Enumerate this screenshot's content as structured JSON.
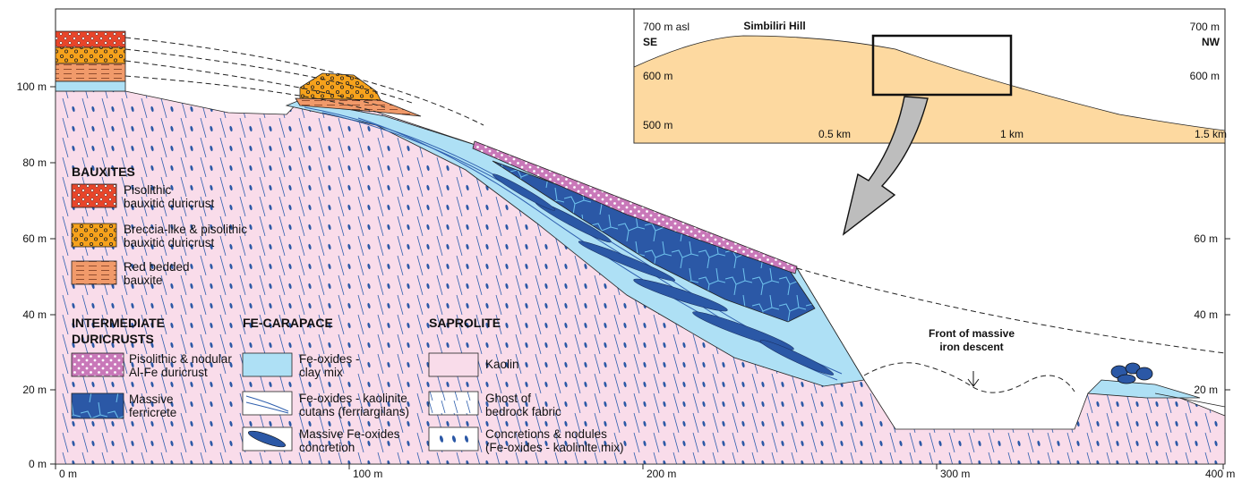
{
  "figure": {
    "y_ticks": [
      "0 m",
      "20 m",
      "40 m",
      "60 m",
      "80 m",
      "100 m"
    ],
    "y_ticks_right": [
      "20 m",
      "40 m",
      "60 m"
    ],
    "x_ticks": [
      "0 m",
      "100 m",
      "200 m",
      "300 m",
      "400 m"
    ],
    "annotation_line1": "Front of massive",
    "annotation_line2": "iron descent"
  },
  "inset": {
    "title": "Simbiliri Hill",
    "left_top": "700 m asl",
    "left_dir": "SE",
    "left_600": "600 m",
    "left_500": "500 m",
    "right_top": "700 m",
    "right_dir": "NW",
    "right_600": "600 m",
    "x_05": "0.5 km",
    "x_1": "1 km",
    "x_15": "1.5 km"
  },
  "legend": {
    "bauxites": {
      "header": "BAUXITES",
      "pisolithic": [
        "Pisolithic",
        "bauxitic duricrust"
      ],
      "breccia": [
        "Breccia-like & pisolithic",
        "bauxitic duricrust"
      ],
      "red_bedded": [
        "Red bedded",
        "bauxite"
      ]
    },
    "intermediate": {
      "header": [
        "INTERMEDIATE",
        "DURICRUSTS"
      ],
      "pisolithic_nodular": [
        "Pisolithic & nodular",
        "Al-Fe duricrust"
      ],
      "massive_ferricrete": [
        "Massive",
        "ferricrete"
      ]
    },
    "carapace": {
      "header": "FE-CARAPACE",
      "clay_mix": [
        "Fe-oxides -",
        "clay mix"
      ],
      "cutans": [
        "Fe-oxides - kaolinite",
        "cutans (ferriargilans)"
      ],
      "concretion": [
        "Massive Fe-oxides",
        "concretion"
      ]
    },
    "saprolite": {
      "header": "SAPROLITE",
      "kaolin": "Kaolin",
      "ghost": [
        "Ghost of",
        "bedrock fabric"
      ],
      "nodules": [
        "Concretions & nodules",
        "(Fe-oxides - kaolinite mix)"
      ]
    }
  },
  "colors": {
    "pisolithic_bauxite": "#e8452a",
    "breccia_bauxite": "#f6a21c",
    "red_bedded": "#f19a6a",
    "al_fe_duricrust": "#c978b9",
    "massive_ferricrete": "#2b58a6",
    "clay_mix": "#aee0f5",
    "kaolin": "#f9dcea",
    "inset_fill": "#fdd9a0",
    "line_blue": "#2f5fae"
  }
}
